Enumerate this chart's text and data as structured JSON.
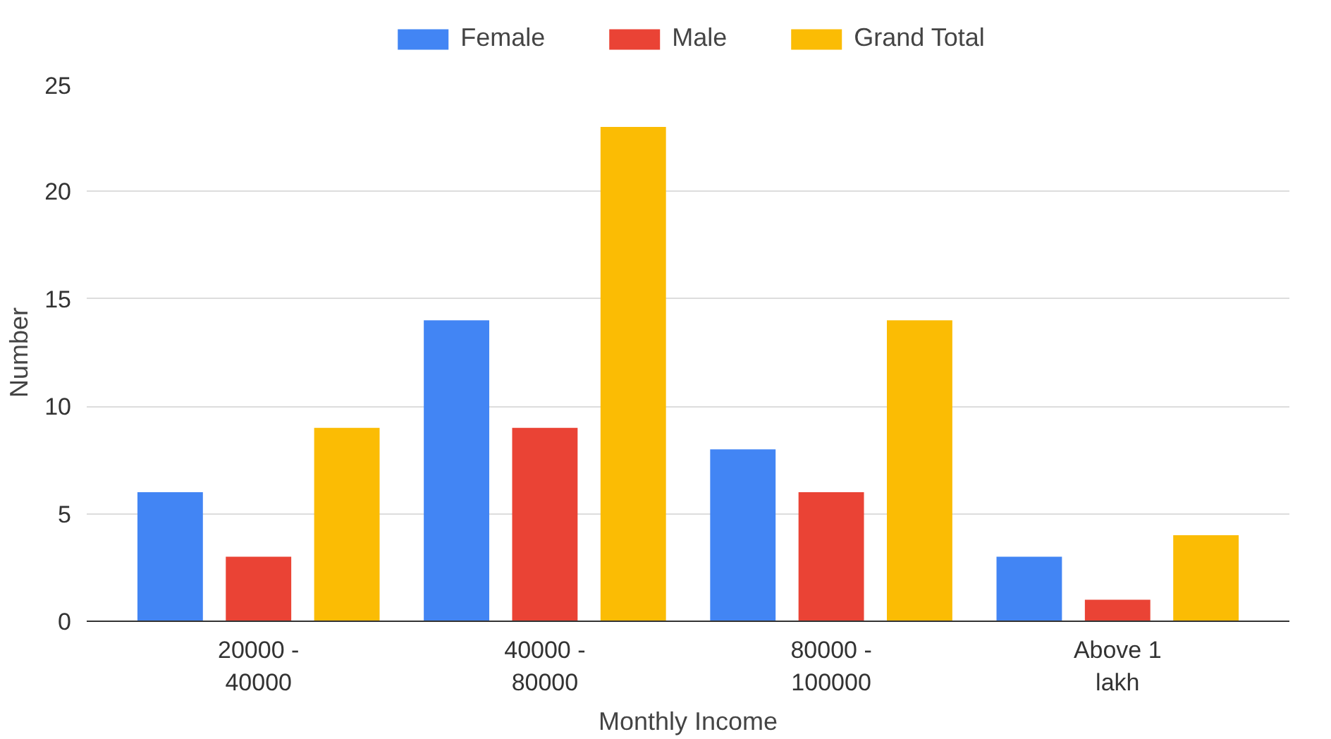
{
  "chart_data": {
    "type": "bar",
    "xlabel": "Monthly Income",
    "ylabel": "Number",
    "categories": [
      "20000 -\n40000",
      "40000 -\n80000",
      "80000 -\n100000",
      "Above 1\nlakh"
    ],
    "series": [
      {
        "name": "Female",
        "color": "#4285f4",
        "values": [
          6,
          14,
          8,
          3
        ]
      },
      {
        "name": "Male",
        "color": "#ea4335",
        "values": [
          3,
          9,
          6,
          1
        ]
      },
      {
        "name": "Grand Total",
        "color": "#fbbc04",
        "values": [
          9,
          23,
          14,
          4
        ]
      }
    ],
    "ylim": [
      0,
      25
    ],
    "yticks": [
      0,
      5,
      10,
      15,
      20,
      25
    ],
    "grid": "y",
    "legend": "top"
  }
}
